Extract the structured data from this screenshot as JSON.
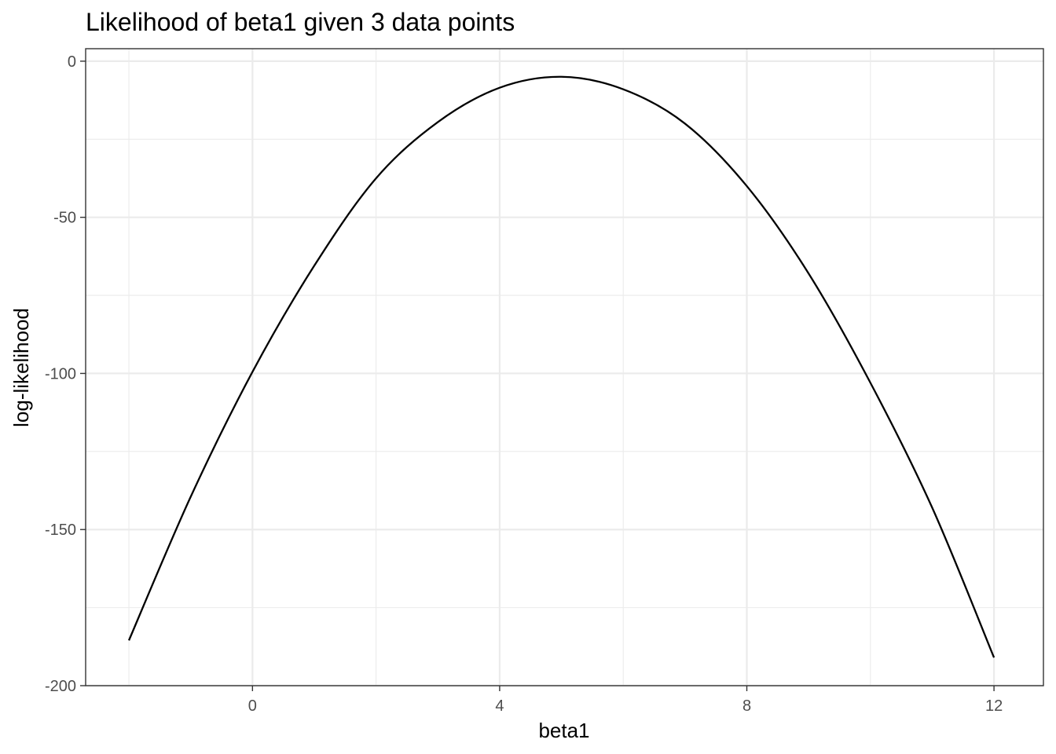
{
  "chart_data": {
    "type": "line",
    "title": "Likelihood of beta1 given 3 data points",
    "xlabel": "beta1",
    "ylabel": "log-likelihood",
    "xlim": [
      -2.7,
      12.8
    ],
    "ylim": [
      -200,
      4
    ],
    "x_ticks": [
      0,
      4,
      8,
      12
    ],
    "x_tick_labels": [
      "0",
      "4",
      "8",
      "12"
    ],
    "x_minor_ticks": [
      -2,
      2,
      6,
      10
    ],
    "y_ticks": [
      0,
      -50,
      -100,
      -150,
      -200
    ],
    "y_tick_labels": [
      "0",
      "-50",
      "-100",
      "-150",
      "-200"
    ],
    "y_minor_ticks": [
      -25,
      -75,
      -125,
      -175
    ],
    "grid": true,
    "legend": "none",
    "series": [
      {
        "color": "#000000",
        "x": [
          -2,
          -1,
          0,
          1,
          2,
          3,
          4,
          5,
          6,
          7,
          8,
          9,
          10,
          11,
          12
        ],
        "y": [
          -185.5,
          -139.5,
          -99.5,
          -65.5,
          -37.5,
          -19.5,
          -8.5,
          -5,
          -9,
          -20,
          -40,
          -68,
          -103,
          -143,
          -191
        ]
      }
    ]
  }
}
